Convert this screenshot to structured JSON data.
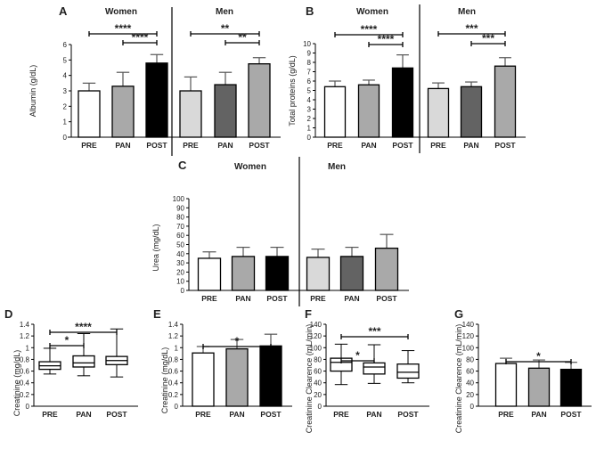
{
  "chart_data": [
    {
      "id": "A",
      "type": "bar",
      "letter": "A",
      "ylabel": "Albumin (g/dL)",
      "ylim": [
        0,
        6
      ],
      "yticks": [
        0,
        1,
        2,
        3,
        4,
        5,
        6
      ],
      "groups": [
        {
          "title": "Women",
          "categories": [
            "PRE",
            "PAN",
            "POST"
          ],
          "values": [
            3.0,
            3.3,
            4.8
          ],
          "errors": [
            0.5,
            0.9,
            0.55
          ],
          "colors": [
            "#ffffff",
            "#a9a9a9",
            "#000000"
          ]
        },
        {
          "title": "Men",
          "categories": [
            "PRE",
            "PAN",
            "POST"
          ],
          "values": [
            3.0,
            3.4,
            4.75
          ],
          "errors": [
            0.9,
            0.8,
            0.4
          ],
          "colors": [
            "#d9d9d9",
            "#636363",
            "#a9a9a9"
          ]
        }
      ],
      "significance": [
        {
          "group": 0,
          "from": 0,
          "to": 2,
          "label": "****"
        },
        {
          "group": 0,
          "from": 1,
          "to": 2,
          "label": "****"
        },
        {
          "group": 1,
          "from": 0,
          "to": 2,
          "label": "**"
        },
        {
          "group": 1,
          "from": 1,
          "to": 2,
          "label": "**"
        }
      ]
    },
    {
      "id": "B",
      "type": "bar",
      "letter": "B",
      "ylabel": "Total proteins (g/dL)",
      "ylim": [
        0,
        10
      ],
      "yticks": [
        0,
        1,
        2,
        3,
        4,
        5,
        6,
        7,
        8,
        9,
        10
      ],
      "groups": [
        {
          "title": "Women",
          "categories": [
            "PRE",
            "PAN",
            "POST"
          ],
          "values": [
            5.4,
            5.6,
            7.4
          ],
          "errors": [
            0.6,
            0.5,
            1.4
          ],
          "colors": [
            "#ffffff",
            "#a9a9a9",
            "#000000"
          ]
        },
        {
          "title": "Men",
          "categories": [
            "PRE",
            "PAN",
            "POST"
          ],
          "values": [
            5.2,
            5.4,
            7.6
          ],
          "errors": [
            0.6,
            0.5,
            0.9
          ],
          "colors": [
            "#d9d9d9",
            "#636363",
            "#a9a9a9"
          ]
        }
      ],
      "significance": [
        {
          "group": 0,
          "from": 0,
          "to": 2,
          "label": "****"
        },
        {
          "group": 0,
          "from": 1,
          "to": 2,
          "label": "****"
        },
        {
          "group": 1,
          "from": 0,
          "to": 2,
          "label": "***"
        },
        {
          "group": 1,
          "from": 1,
          "to": 2,
          "label": "***"
        }
      ]
    },
    {
      "id": "C",
      "type": "bar",
      "letter": "C",
      "ylabel": "Urea (mg/dL)",
      "ylim": [
        0,
        100
      ],
      "yticks": [
        0,
        10,
        20,
        30,
        40,
        50,
        60,
        70,
        80,
        90,
        100
      ],
      "groups": [
        {
          "title": "Women",
          "categories": [
            "PRE",
            "PAN",
            "POST"
          ],
          "values": [
            35,
            37,
            37
          ],
          "errors": [
            7,
            10,
            10
          ],
          "colors": [
            "#ffffff",
            "#a9a9a9",
            "#000000"
          ]
        },
        {
          "title": "Men",
          "categories": [
            "PRE",
            "PAN",
            "POST"
          ],
          "values": [
            36,
            37,
            46
          ],
          "errors": [
            9,
            10,
            15
          ],
          "colors": [
            "#d9d9d9",
            "#636363",
            "#a9a9a9"
          ]
        }
      ],
      "significance": []
    },
    {
      "id": "D",
      "type": "box",
      "letter": "D",
      "ylabel": "Creatinine (mg/dL)",
      "ylim": [
        0,
        1.4
      ],
      "yticks": [
        "0",
        "0.2",
        "0.4",
        "0.6",
        "0.8",
        "1",
        "1.2",
        "1.4"
      ],
      "categories": [
        "PRE",
        "PAN",
        "POST"
      ],
      "boxes": [
        {
          "min": 0.55,
          "q1": 0.63,
          "median": 0.69,
          "q3": 0.76,
          "max": 0.99
        },
        {
          "min": 0.52,
          "q1": 0.67,
          "median": 0.74,
          "q3": 0.86,
          "max": 1.24
        },
        {
          "min": 0.5,
          "q1": 0.71,
          "median": 0.78,
          "q3": 0.85,
          "max": 1.32
        }
      ],
      "significance": [
        {
          "from": 0,
          "to": 1,
          "label": "*"
        },
        {
          "from": 0,
          "to": 2,
          "label": "****"
        }
      ]
    },
    {
      "id": "E",
      "type": "bar",
      "letter": "E",
      "ylabel": "Creatinine (mg/dL)",
      "ylim": [
        0,
        1.4
      ],
      "yticks": [
        "0",
        "0.2",
        "0.4",
        "0.6",
        "0.8",
        "1",
        "1.2",
        "1.4"
      ],
      "categories": [
        "PRE",
        "PAN",
        "POST"
      ],
      "values": [
        0.91,
        0.98,
        1.03
      ],
      "errors": [
        0.11,
        0.16,
        0.2
      ],
      "colors": [
        "#ffffff",
        "#a9a9a9",
        "#000000"
      ],
      "significance": [
        {
          "from": 0,
          "to": 2,
          "label": "*"
        }
      ]
    },
    {
      "id": "F",
      "type": "box",
      "letter": "F",
      "ylabel": "Creatinine Clearence (mL/min)",
      "ylim": [
        0,
        140
      ],
      "yticks": [
        "0",
        "20",
        "40",
        "60",
        "80",
        "100",
        "120",
        "140"
      ],
      "categories": [
        "PRE",
        "PAN",
        "POST"
      ],
      "boxes": [
        {
          "min": 37,
          "q1": 60,
          "median": 75,
          "q3": 82,
          "max": 106
        },
        {
          "min": 39,
          "q1": 55,
          "median": 67,
          "q3": 74,
          "max": 105
        },
        {
          "min": 40,
          "q1": 48,
          "median": 58,
          "q3": 72,
          "max": 95
        }
      ],
      "significance": [
        {
          "from": 0,
          "to": 1,
          "label": "*"
        },
        {
          "from": 0,
          "to": 2,
          "label": "***"
        }
      ]
    },
    {
      "id": "G",
      "type": "bar",
      "letter": "G",
      "ylabel": "Creatinine Clearence (mL/min)",
      "ylim": [
        0,
        140
      ],
      "yticks": [
        "0",
        "20",
        "40",
        "60",
        "80",
        "100",
        "120",
        "140"
      ],
      "categories": [
        "PRE",
        "PAN",
        "POST"
      ],
      "values": [
        73,
        65,
        63
      ],
      "errors": [
        9,
        14,
        12
      ],
      "colors": [
        "#ffffff",
        "#a9a9a9",
        "#000000"
      ],
      "significance": [
        {
          "from": 0,
          "to": 2,
          "label": "*"
        }
      ]
    }
  ]
}
